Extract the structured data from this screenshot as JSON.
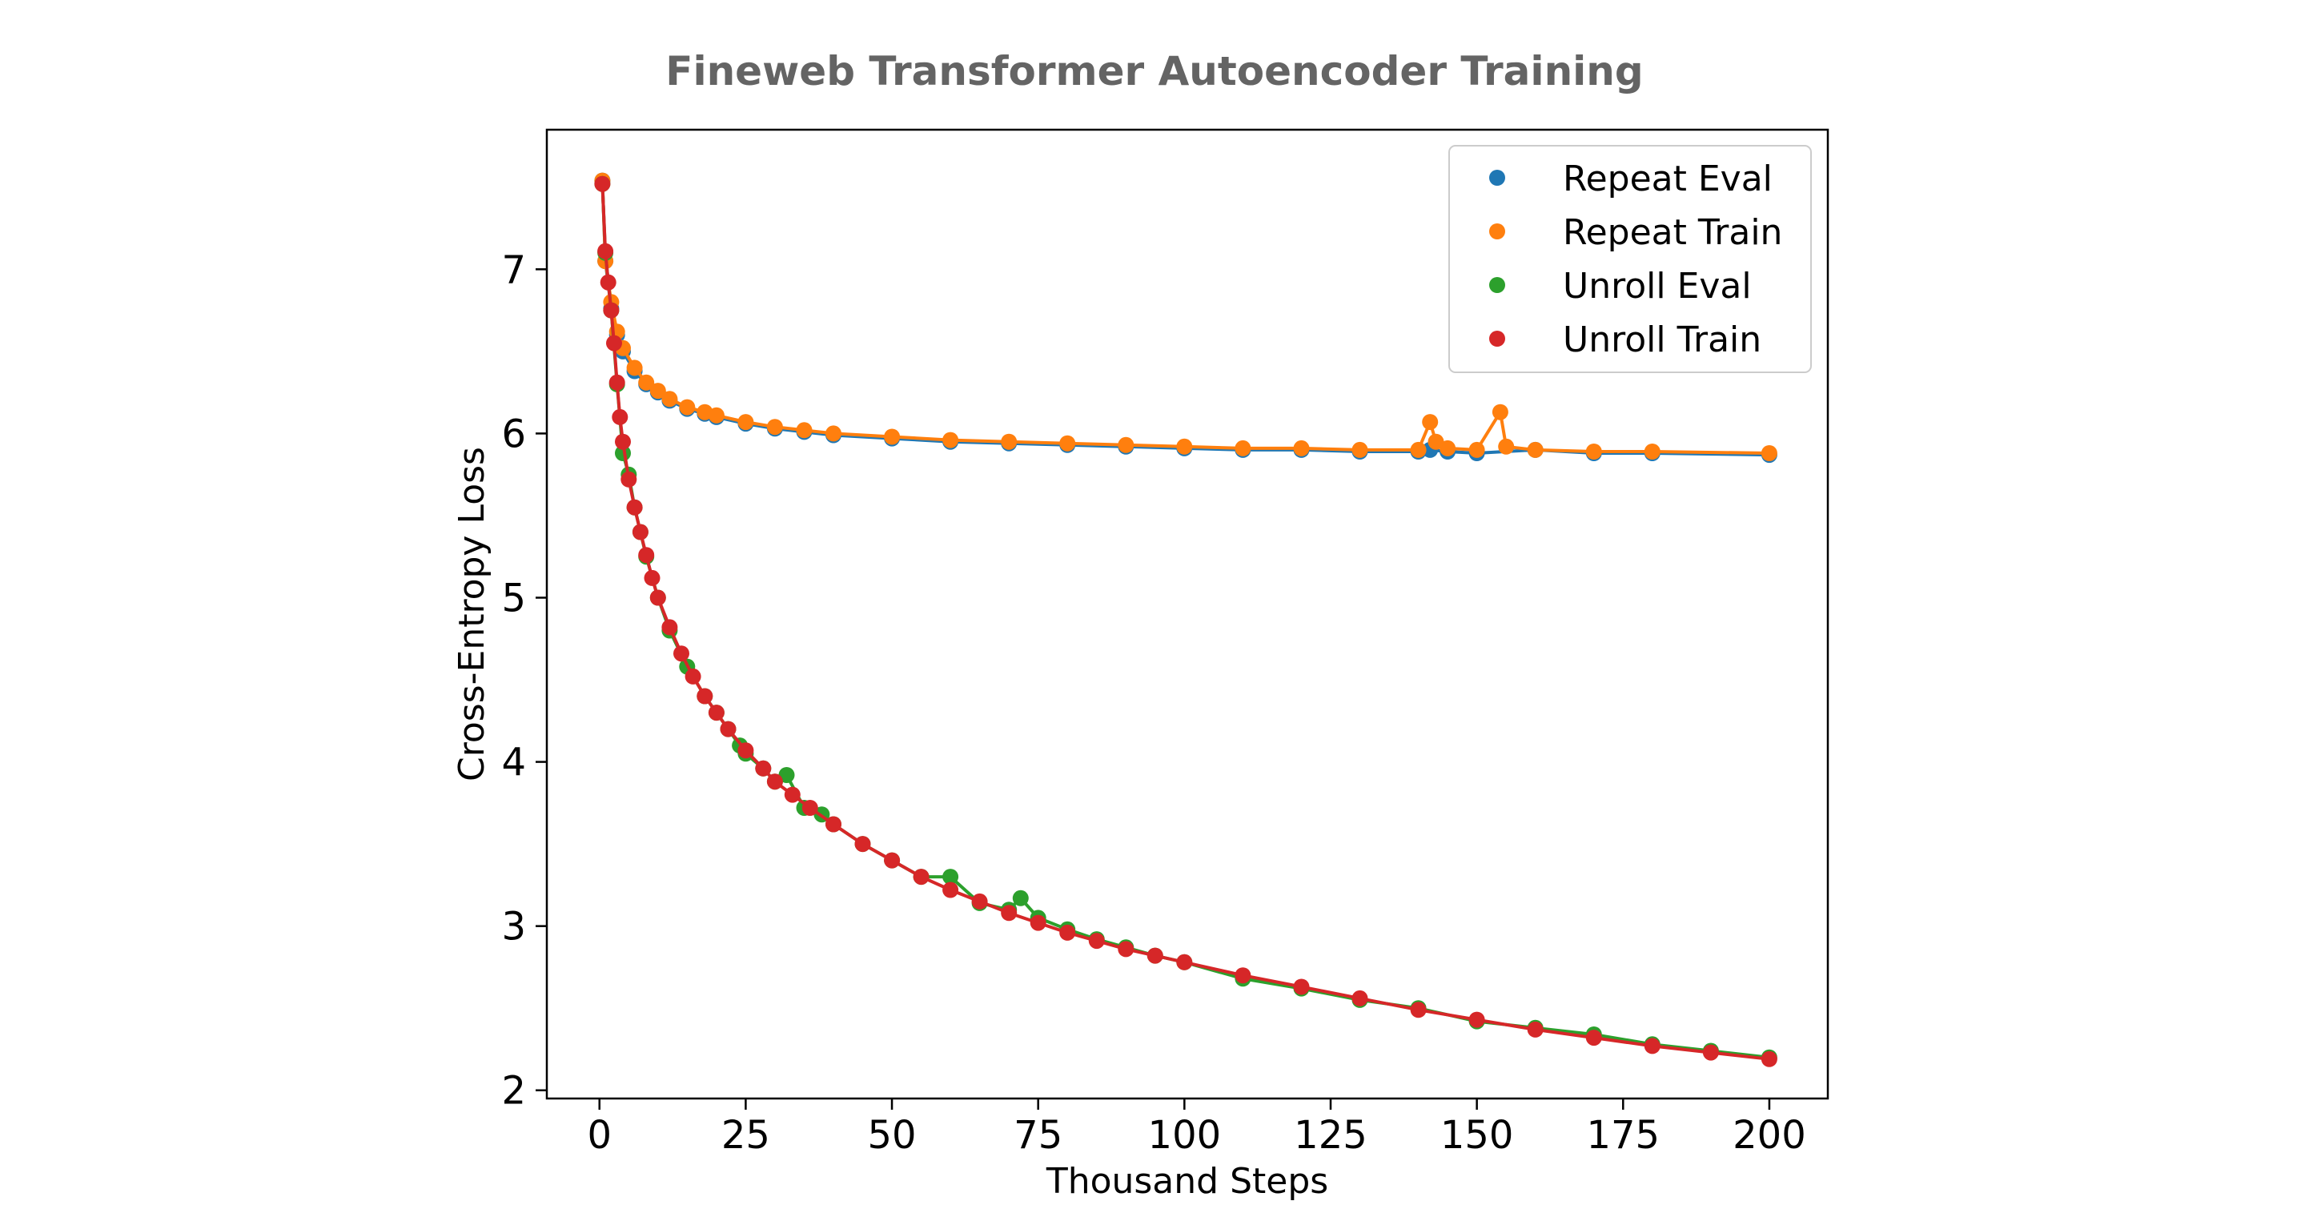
{
  "chart_data": {
    "type": "line",
    "title": "Fineweb Transformer Autoencoder Training",
    "xlabel": "Thousand Steps",
    "ylabel": "Cross-Entropy Loss",
    "xlim": [
      -9,
      210
    ],
    "ylim": [
      1.95,
      7.85
    ],
    "xticks": [
      0,
      25,
      50,
      75,
      100,
      125,
      150,
      175,
      200
    ],
    "yticks": [
      2,
      3,
      4,
      5,
      6,
      7
    ],
    "legend_position": "top-right",
    "grid": false,
    "series": [
      {
        "name": "Repeat Eval",
        "color": "#1f77b4",
        "x": [
          0.5,
          1,
          2,
          3,
          4,
          6,
          8,
          10,
          12,
          15,
          18,
          20,
          25,
          30,
          35,
          40,
          50,
          60,
          70,
          80,
          90,
          100,
          110,
          120,
          130,
          140,
          142,
          145,
          150,
          160,
          170,
          180,
          200
        ],
        "y": [
          7.54,
          7.05,
          6.76,
          6.6,
          6.5,
          6.38,
          6.3,
          6.25,
          6.2,
          6.15,
          6.12,
          6.1,
          6.06,
          6.03,
          6.01,
          5.99,
          5.97,
          5.95,
          5.94,
          5.93,
          5.92,
          5.91,
          5.9,
          5.9,
          5.89,
          5.89,
          5.9,
          5.89,
          5.88,
          5.9,
          5.88,
          5.88,
          5.87
        ]
      },
      {
        "name": "Repeat Train",
        "color": "#ff7f0e",
        "x": [
          0.5,
          1,
          2,
          3,
          4,
          6,
          8,
          10,
          12,
          15,
          18,
          20,
          25,
          30,
          35,
          40,
          50,
          60,
          70,
          80,
          90,
          100,
          110,
          120,
          130,
          140,
          142,
          143,
          145,
          150,
          154,
          155,
          160,
          170,
          180,
          200
        ],
        "y": [
          7.54,
          7.05,
          6.8,
          6.62,
          6.52,
          6.4,
          6.31,
          6.26,
          6.21,
          6.16,
          6.13,
          6.11,
          6.07,
          6.04,
          6.02,
          6.0,
          5.98,
          5.96,
          5.95,
          5.94,
          5.93,
          5.92,
          5.91,
          5.91,
          5.9,
          5.9,
          6.07,
          5.95,
          5.91,
          5.9,
          6.13,
          5.92,
          5.9,
          5.89,
          5.89,
          5.88
        ]
      },
      {
        "name": "Unroll Eval",
        "color": "#2ca02c",
        "x": [
          0.5,
          1,
          2,
          3,
          4,
          5,
          6,
          7,
          8,
          10,
          12,
          15,
          18,
          20,
          22,
          24,
          25,
          28,
          30,
          32,
          35,
          38,
          40,
          45,
          50,
          55,
          60,
          65,
          70,
          72,
          75,
          80,
          85,
          90,
          95,
          100,
          110,
          120,
          130,
          140,
          150,
          160,
          170,
          180,
          190,
          200
        ],
        "y": [
          7.52,
          7.1,
          6.75,
          6.3,
          5.88,
          5.75,
          5.55,
          5.4,
          5.25,
          5.0,
          4.8,
          4.58,
          4.4,
          4.3,
          4.2,
          4.1,
          4.05,
          3.96,
          3.88,
          3.92,
          3.72,
          3.68,
          3.62,
          3.5,
          3.4,
          3.3,
          3.3,
          3.14,
          3.1,
          3.17,
          3.05,
          2.98,
          2.92,
          2.87,
          2.82,
          2.78,
          2.68,
          2.62,
          2.55,
          2.5,
          2.42,
          2.38,
          2.34,
          2.28,
          2.24,
          2.2
        ]
      },
      {
        "name": "Unroll Train",
        "color": "#d62728",
        "x": [
          0.5,
          1,
          1.5,
          2,
          2.5,
          3,
          3.5,
          4,
          5,
          6,
          7,
          8,
          9,
          10,
          12,
          14,
          16,
          18,
          20,
          22,
          25,
          28,
          30,
          33,
          36,
          40,
          45,
          50,
          55,
          60,
          65,
          70,
          75,
          80,
          85,
          90,
          95,
          100,
          110,
          120,
          130,
          140,
          150,
          160,
          170,
          180,
          190,
          200
        ],
        "y": [
          7.52,
          7.11,
          6.92,
          6.75,
          6.55,
          6.31,
          6.1,
          5.95,
          5.72,
          5.55,
          5.4,
          5.26,
          5.12,
          5.0,
          4.82,
          4.66,
          4.52,
          4.4,
          4.3,
          4.2,
          4.07,
          3.96,
          3.88,
          3.8,
          3.72,
          3.62,
          3.5,
          3.4,
          3.3,
          3.22,
          3.15,
          3.08,
          3.02,
          2.96,
          2.91,
          2.86,
          2.82,
          2.78,
          2.7,
          2.63,
          2.56,
          2.49,
          2.43,
          2.37,
          2.32,
          2.27,
          2.23,
          2.19
        ]
      }
    ]
  }
}
